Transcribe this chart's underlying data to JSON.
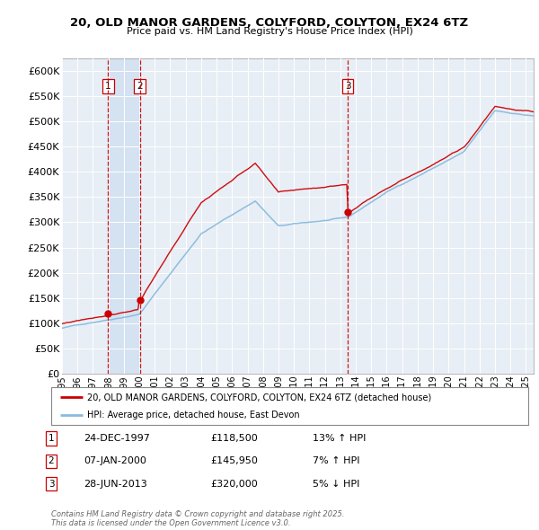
{
  "title": "20, OLD MANOR GARDENS, COLYFORD, COLYTON, EX24 6TZ",
  "subtitle": "Price paid vs. HM Land Registry's House Price Index (HPI)",
  "background_color": "#ffffff",
  "plot_bg_color": "#e8eef5",
  "ylim": [
    0,
    625000
  ],
  "yticks": [
    0,
    50000,
    100000,
    150000,
    200000,
    250000,
    300000,
    350000,
    400000,
    450000,
    500000,
    550000,
    600000
  ],
  "ytick_labels": [
    "£0",
    "£50K",
    "£100K",
    "£150K",
    "£200K",
    "£250K",
    "£300K",
    "£350K",
    "£400K",
    "£450K",
    "£500K",
    "£550K",
    "£600K"
  ],
  "xlim_start": 1995.0,
  "xlim_end": 2025.5,
  "sale_dates": [
    1997.98,
    2000.03,
    2013.49
  ],
  "sale_prices": [
    118500,
    145950,
    320000
  ],
  "sale_labels": [
    "1",
    "2",
    "3"
  ],
  "legend_line1": "20, OLD MANOR GARDENS, COLYFORD, COLYTON, EX24 6TZ (detached house)",
  "legend_line2": "HPI: Average price, detached house, East Devon",
  "table_entries": [
    {
      "num": "1",
      "date": "24-DEC-1997",
      "price": "£118,500",
      "pct": "13% ↑ HPI"
    },
    {
      "num": "2",
      "date": "07-JAN-2000",
      "price": "£145,950",
      "pct": "7% ↑ HPI"
    },
    {
      "num": "3",
      "date": "28-JUN-2013",
      "price": "£320,000",
      "pct": "5% ↓ HPI"
    }
  ],
  "footer": "Contains HM Land Registry data © Crown copyright and database right 2025.\nThis data is licensed under the Open Government Licence v3.0.",
  "line_color_red": "#cc0000",
  "line_color_blue": "#88bbdd",
  "vline_color": "#cc0000",
  "shade_color": "#ccddf0"
}
